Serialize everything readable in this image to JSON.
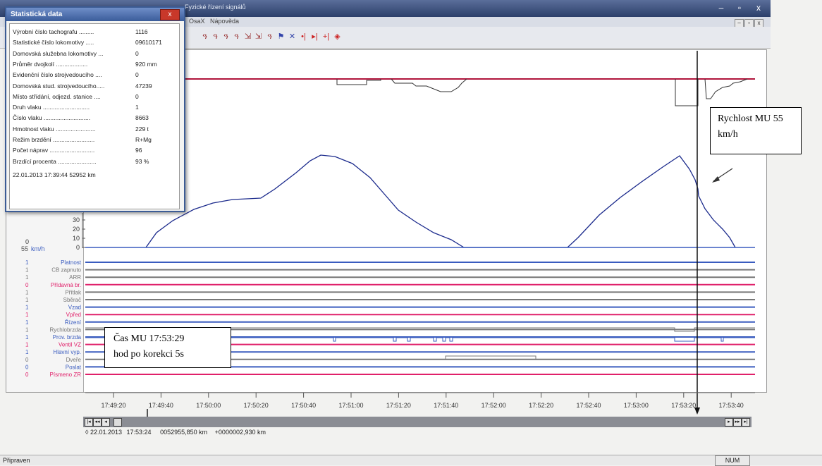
{
  "window": {
    "title": "Fyzické řízení signálů"
  },
  "menu": {
    "items": [
      "OsaX",
      "Nápověda"
    ]
  },
  "statistics": {
    "title": "Statistická data",
    "rows": [
      {
        "label": "Výrobní číslo tachografu .........",
        "value": "1116"
      },
      {
        "label": "Statistické číslo lokomotivy .....",
        "value": "09610171"
      },
      {
        "label": "Domovská služebna lokomotivy ...",
        "value": "0"
      },
      {
        "label": "Průměr dvojkolí ...................",
        "value": "920 mm"
      },
      {
        "label": "Evidenční číslo strojvedoucího ....",
        "value": "0"
      },
      {
        "label": "Domovská stud. strojvedoucího.....",
        "value": "47239"
      },
      {
        "label": "Místo střídání, odjezd. stanice ....",
        "value": "0"
      },
      {
        "label": "Druh vlaku ............................",
        "value": "1"
      },
      {
        "label": "Číslo vlaku ............................",
        "value": "8663"
      },
      {
        "label": "Hmotnost vlaku ........................",
        "value": "229 t"
      },
      {
        "label": "Režim brzdění .........................",
        "value": "R+Mg"
      },
      {
        "label": "Počet náprav ...........................",
        "value": "96"
      },
      {
        "label": "Brzdící procenta .......................",
        "value": "93 %"
      }
    ],
    "footer": "22.01.2013  17:39:44  52952 km"
  },
  "speed_axis": {
    "ticks": [
      "30",
      "20",
      "10",
      "0"
    ],
    "unit": "km/h",
    "current_speed": "55",
    "zero_label": "0"
  },
  "signals": [
    {
      "value": "1",
      "name": "Platnost",
      "color": "#3a5cbf"
    },
    {
      "value": "1",
      "name": "CB zapnuto",
      "color": "#777777"
    },
    {
      "value": "1",
      "name": "ARR",
      "color": "#777777"
    },
    {
      "value": "0",
      "name": "Přídavná br.",
      "color": "#e0206a"
    },
    {
      "value": "1",
      "name": "Přítlak",
      "color": "#777777"
    },
    {
      "value": "1",
      "name": "Sběrač",
      "color": "#777777"
    },
    {
      "value": "1",
      "name": "Vzad",
      "color": "#3a5cbf"
    },
    {
      "value": "1",
      "name": "Vpřed",
      "color": "#e0206a"
    },
    {
      "value": "1",
      "name": "Řízení",
      "color": "#3a5cbf"
    },
    {
      "value": "1",
      "name": "Rychlobrzda",
      "color": "#777777"
    },
    {
      "value": "1",
      "name": "Prov. brzda",
      "color": "#3a5cbf"
    },
    {
      "value": "1",
      "name": "Ventil VZ",
      "color": "#e0206a"
    },
    {
      "value": "1",
      "name": "Hlavní vyp.",
      "color": "#3a5cbf"
    },
    {
      "value": "0",
      "name": "Dveře",
      "color": "#777777"
    },
    {
      "value": "0",
      "name": "Poslat",
      "color": "#3a5cbf"
    },
    {
      "value": "0",
      "name": "Písmeno ZR",
      "color": "#e0206a"
    }
  ],
  "time_axis": {
    "ticks": [
      "17:49:20",
      "17:49:40",
      "17:50:00",
      "17:50:20",
      "17:50:40",
      "17:51:00",
      "17:51:20",
      "17:51:40",
      "17:52:00",
      "17:52:20",
      "17:52:40",
      "17:53:00",
      "17:53:20",
      "17:53:40"
    ]
  },
  "callouts": {
    "speed_line1": "Rychlost  MU 55",
    "speed_line2": "km/h",
    "time_line1": "Čas MU 17:53:29",
    "time_line2": "hod po korekci 5s"
  },
  "cursor_info": {
    "date": "22.01.2013",
    "time": "17:53:24",
    "km": "0052955,850 km",
    "delta": "+0000002,930 km"
  },
  "statusbar": {
    "ready": "Připraven",
    "num": "NUM"
  },
  "colors": {
    "accent_line": "#b0143c",
    "speed_curve": "#1b2a8c"
  }
}
